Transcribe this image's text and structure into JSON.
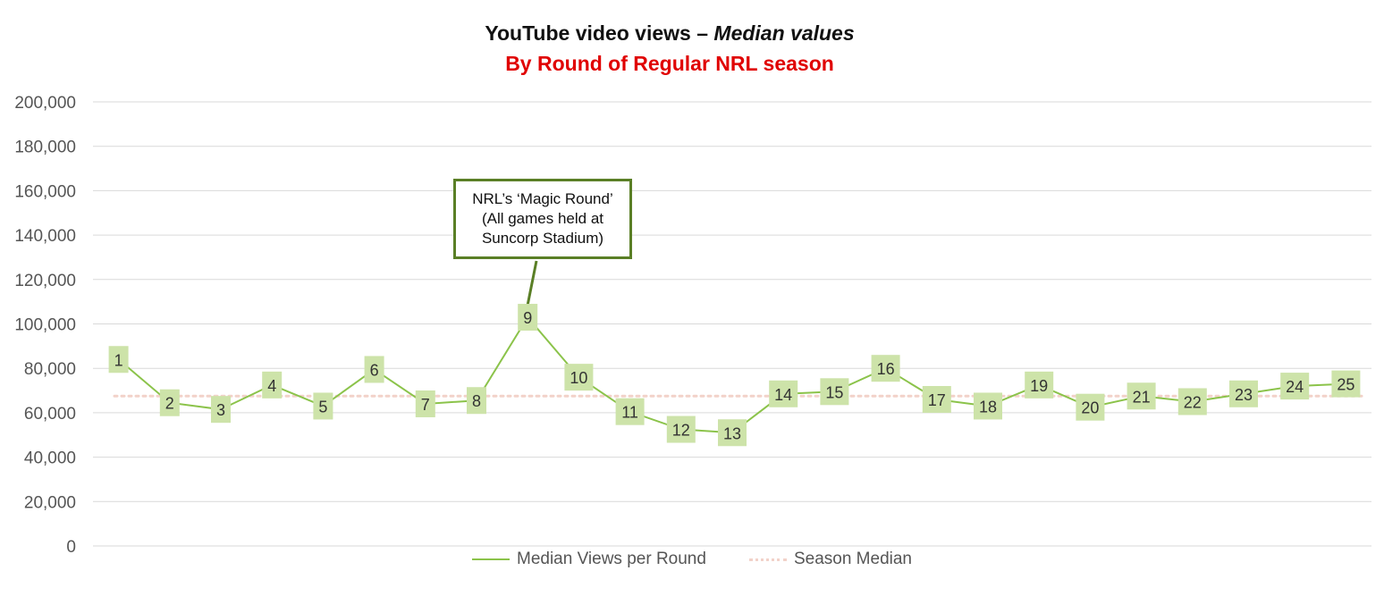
{
  "title": {
    "main": "YouTube video views – ",
    "main_italic": "Median values",
    "sub": "By Round of Regular NRL season",
    "sub_color": "#e00000"
  },
  "colors": {
    "line": "#8bc34a",
    "marker": "#cde3a9",
    "median": "#f2d2c9",
    "grid": "#d9d9d9",
    "callout_border": "#5a7f26"
  },
  "annotation": {
    "lines": [
      "NRL’s ‘Magic Round’",
      "(All games held at",
      "Suncorp Stadium)"
    ],
    "target_round": "9"
  },
  "chart_data": {
    "type": "line",
    "title": "YouTube video views – Median values",
    "subtitle": "By Round of Regular NRL season",
    "xlabel": "",
    "ylabel": "",
    "ylim": [
      0,
      200000
    ],
    "yticks": [
      0,
      20000,
      40000,
      60000,
      80000,
      100000,
      120000,
      140000,
      160000,
      180000,
      200000
    ],
    "ytick_labels": [
      "0",
      "20,000",
      "40,000",
      "60,000",
      "80,000",
      "100,000",
      "120,000",
      "140,000",
      "160,000",
      "180,000",
      "200,000"
    ],
    "grid": true,
    "legend_position": "bottom",
    "categories": [
      "1",
      "2",
      "3",
      "4",
      "5",
      "6",
      "7",
      "8",
      "9",
      "10",
      "11",
      "12",
      "13",
      "14",
      "15",
      "16",
      "17",
      "18",
      "19",
      "20",
      "21",
      "22",
      "23",
      "24",
      "25"
    ],
    "series": [
      {
        "name": "Median Views per Round",
        "style": "solid",
        "values": [
          84000,
          64500,
          61500,
          72500,
          63000,
          79500,
          64000,
          65500,
          103000,
          76000,
          60500,
          52500,
          51000,
          68500,
          69500,
          80000,
          66000,
          63000,
          72500,
          62500,
          67500,
          65000,
          68500,
          72000,
          73000
        ]
      },
      {
        "name": "Season Median",
        "style": "dotted",
        "values": [
          67500,
          67500,
          67500,
          67500,
          67500,
          67500,
          67500,
          67500,
          67500,
          67500,
          67500,
          67500,
          67500,
          67500,
          67500,
          67500,
          67500,
          67500,
          67500,
          67500,
          67500,
          67500,
          67500,
          67500,
          67500
        ]
      }
    ]
  }
}
